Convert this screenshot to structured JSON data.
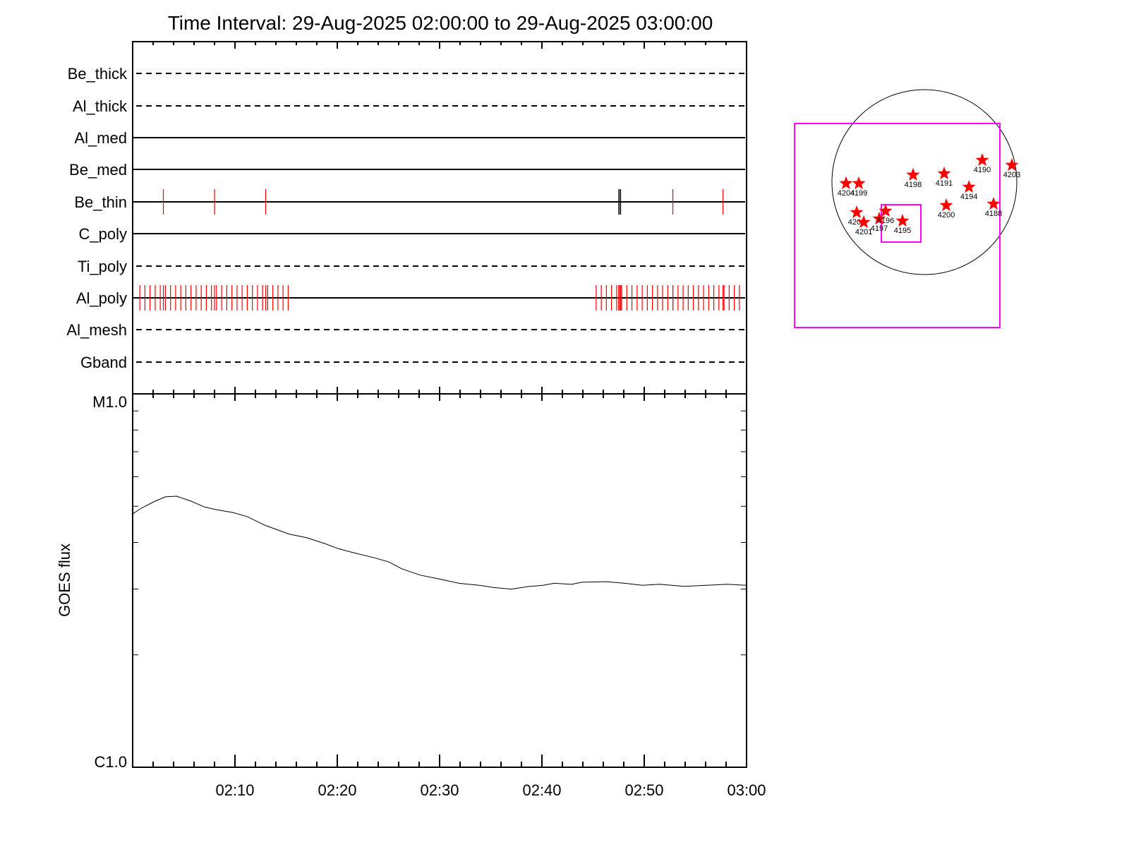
{
  "chart_data": [
    {
      "type": "line",
      "name": "attenuator-event-timeline",
      "title": "Time Interval: 29-Aug-2025 02:00:00 to 29-Aug-2025 03:00:00",
      "x_unit": "minutes after 02:00",
      "xlim": [
        0,
        60
      ],
      "channels": [
        {
          "label": "Be_thick",
          "style": "dashed",
          "events": []
        },
        {
          "label": "Al_thick",
          "style": "dashed",
          "events": []
        },
        {
          "label": "Al_med",
          "style": "solid",
          "events": []
        },
        {
          "label": "Be_med",
          "style": "solid",
          "events": []
        },
        {
          "label": "Be_thin",
          "style": "solid",
          "events": [
            3.0,
            8.0,
            13.0,
            52.8,
            57.7
          ],
          "black_events": [
            47.5,
            47.6,
            47.7
          ]
        },
        {
          "label": "C_poly",
          "style": "solid",
          "events": []
        },
        {
          "label": "Ti_poly",
          "style": "dashed",
          "events": []
        },
        {
          "label": "Al_poly",
          "style": "solid",
          "event_groups": [
            {
              "start": 0.7,
              "step": 0.5,
              "count": 30
            },
            {
              "start": 45.3,
              "step": 0.5,
              "count": 29
            }
          ],
          "events": [
            3.0,
            8.0,
            13.0,
            47.5,
            47.6,
            47.7,
            52.8,
            57.7
          ]
        },
        {
          "label": "Al_mesh",
          "style": "dashed",
          "events": []
        },
        {
          "label": "Gband",
          "style": "dashed",
          "events": []
        }
      ]
    },
    {
      "type": "line",
      "name": "goes-flux",
      "ylabel": "GOES flux",
      "yscale": "log",
      "ylim": [
        1e-06,
        1e-05
      ],
      "ytick_labels": [
        "C1.0",
        "M1.0"
      ],
      "xtick_labels": [
        "02:10",
        "02:20",
        "02:30",
        "02:40",
        "02:50",
        "03:00"
      ],
      "xticks": [
        10,
        20,
        30,
        40,
        50,
        60
      ],
      "x": [
        0,
        0.83,
        2.2,
        3.2,
        4.3,
        5.7,
        7.0,
        8.1,
        9.8,
        11.2,
        12.9,
        15.3,
        17.0,
        18.8,
        20.1,
        21.5,
        23.6,
        25.0,
        26.3,
        28.1,
        29.8,
        31.9,
        33.9,
        35.3,
        37.0,
        38.8,
        40.1,
        41.2,
        42.9,
        43.9,
        46.3,
        48.1,
        49.8,
        51.5,
        53.9,
        56.0,
        58.1,
        60
      ],
      "y": [
        4.77e-06,
        4.94e-06,
        5.16e-06,
        5.3e-06,
        5.32e-06,
        5.16e-06,
        4.98e-06,
        4.9e-06,
        4.81e-06,
        4.69e-06,
        4.45e-06,
        4.21e-06,
        4.12e-06,
        3.97e-06,
        3.85e-06,
        3.76e-06,
        3.64e-06,
        3.55e-06,
        3.4e-06,
        3.27e-06,
        3.2e-06,
        3.11e-06,
        3.07e-06,
        3.03e-06,
        3e-06,
        3.05e-06,
        3.07e-06,
        3.11e-06,
        3.09e-06,
        3.13e-06,
        3.14e-06,
        3.11e-06,
        3.07e-06,
        3.09e-06,
        3.05e-06,
        3.07e-06,
        3.09e-06,
        3.07e-06
      ]
    },
    {
      "type": "scatter",
      "name": "solar-disk-map",
      "unit": "arcsec",
      "solar_radius": 950,
      "fov_box": {
        "x": [
          -1334,
          776
        ],
        "y": [
          -1494,
          602
        ],
        "color": "#ff00ff"
      },
      "flare_box": {
        "x": [
          -442,
          -36
        ],
        "y": [
          -616,
          -232
        ],
        "color": "#ff00ff"
      },
      "marker_color": "#ff0000",
      "regions": [
        {
          "label": "4204",
          "x": -805,
          "y": -14
        },
        {
          "label": "4199",
          "x": -674,
          "y": -14
        },
        {
          "label": "4198",
          "x": -116,
          "y": 73
        },
        {
          "label": "4191",
          "x": 203,
          "y": 87
        },
        {
          "label": "4190",
          "x": 595,
          "y": 225
        },
        {
          "label": "4203",
          "x": 899,
          "y": 174
        },
        {
          "label": "4194",
          "x": 458,
          "y": -51
        },
        {
          "label": "4188",
          "x": 711,
          "y": -225
        },
        {
          "label": "4200",
          "x": 225,
          "y": -239
        },
        {
          "label": "4202",
          "x": -696,
          "y": -312
        },
        {
          "label": "4201",
          "x": -623,
          "y": -413
        },
        {
          "label": "4197",
          "x": -464,
          "y": -377
        },
        {
          "label": "4196",
          "x": -399,
          "y": -297
        },
        {
          "label": "4195",
          "x": -225,
          "y": -399
        }
      ]
    }
  ]
}
